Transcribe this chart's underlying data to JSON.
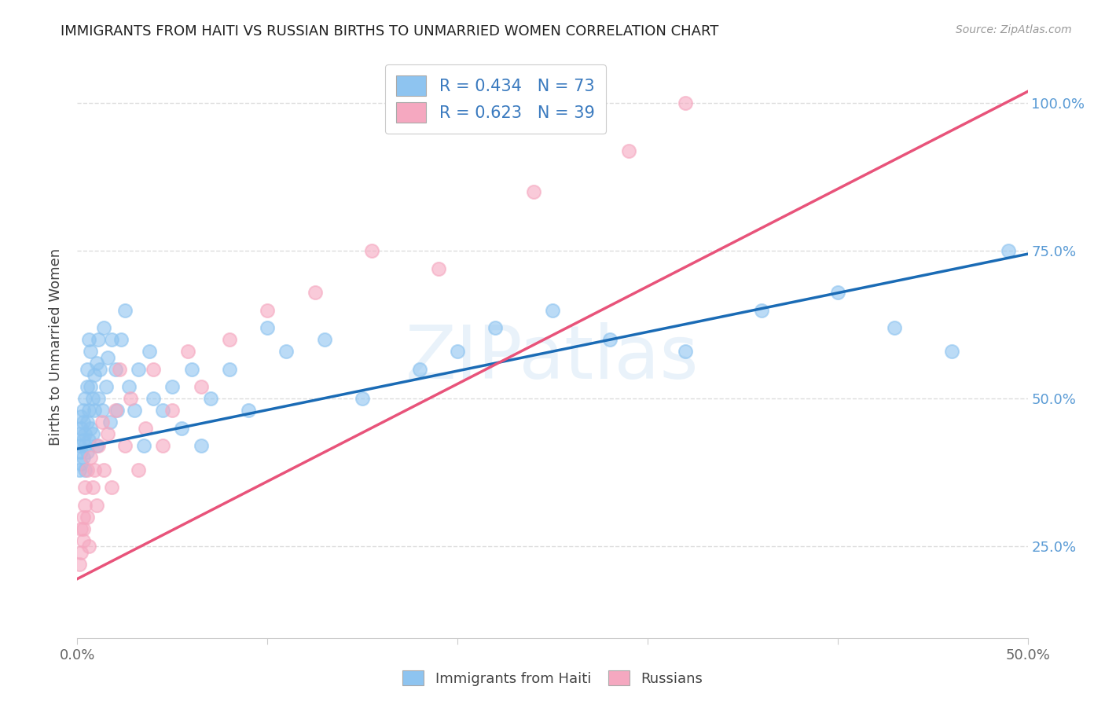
{
  "title": "IMMIGRANTS FROM HAITI VS RUSSIAN BIRTHS TO UNMARRIED WOMEN CORRELATION CHART",
  "source": "Source: ZipAtlas.com",
  "ylabel": "Births to Unmarried Women",
  "legend_haiti": "Immigrants from Haiti",
  "legend_russians": "Russians",
  "r_haiti": "R = 0.434",
  "n_haiti": "N = 73",
  "r_russians": "R = 0.623",
  "n_russians": "N = 39",
  "haiti_color": "#8ec4f0",
  "russian_color": "#f5a8c0",
  "haiti_line_color": "#1a6bb5",
  "russian_line_color": "#e8537a",
  "watermark": "ZIPatlas",
  "background_color": "#ffffff",
  "grid_color": "#dddddd",
  "haiti_x": [
    0.001,
    0.001,
    0.001,
    0.002,
    0.002,
    0.002,
    0.002,
    0.003,
    0.003,
    0.003,
    0.003,
    0.004,
    0.004,
    0.004,
    0.004,
    0.005,
    0.005,
    0.005,
    0.005,
    0.006,
    0.006,
    0.006,
    0.007,
    0.007,
    0.007,
    0.008,
    0.008,
    0.009,
    0.009,
    0.01,
    0.01,
    0.011,
    0.011,
    0.012,
    0.013,
    0.014,
    0.015,
    0.016,
    0.017,
    0.018,
    0.02,
    0.021,
    0.023,
    0.025,
    0.027,
    0.03,
    0.032,
    0.035,
    0.038,
    0.04,
    0.045,
    0.05,
    0.055,
    0.06,
    0.065,
    0.07,
    0.08,
    0.09,
    0.1,
    0.11,
    0.13,
    0.15,
    0.18,
    0.2,
    0.22,
    0.25,
    0.28,
    0.32,
    0.36,
    0.4,
    0.43,
    0.46,
    0.49
  ],
  "haiti_y": [
    0.42,
    0.38,
    0.44,
    0.41,
    0.45,
    0.39,
    0.47,
    0.43,
    0.48,
    0.4,
    0.46,
    0.44,
    0.5,
    0.42,
    0.38,
    0.52,
    0.46,
    0.41,
    0.55,
    0.48,
    0.43,
    0.6,
    0.52,
    0.45,
    0.58,
    0.5,
    0.44,
    0.54,
    0.48,
    0.56,
    0.42,
    0.6,
    0.5,
    0.55,
    0.48,
    0.62,
    0.52,
    0.57,
    0.46,
    0.6,
    0.55,
    0.48,
    0.6,
    0.65,
    0.52,
    0.48,
    0.55,
    0.42,
    0.58,
    0.5,
    0.48,
    0.52,
    0.45,
    0.55,
    0.42,
    0.5,
    0.55,
    0.48,
    0.62,
    0.58,
    0.6,
    0.5,
    0.55,
    0.58,
    0.62,
    0.65,
    0.6,
    0.58,
    0.65,
    0.68,
    0.62,
    0.58,
    0.75
  ],
  "russian_x": [
    0.001,
    0.002,
    0.002,
    0.003,
    0.003,
    0.003,
    0.004,
    0.004,
    0.005,
    0.005,
    0.006,
    0.007,
    0.008,
    0.009,
    0.01,
    0.011,
    0.013,
    0.014,
    0.016,
    0.018,
    0.02,
    0.022,
    0.025,
    0.028,
    0.032,
    0.036,
    0.04,
    0.045,
    0.05,
    0.058,
    0.065,
    0.08,
    0.1,
    0.125,
    0.155,
    0.19,
    0.24,
    0.29,
    0.32
  ],
  "russian_y": [
    0.22,
    0.28,
    0.24,
    0.3,
    0.26,
    0.28,
    0.32,
    0.35,
    0.3,
    0.38,
    0.25,
    0.4,
    0.35,
    0.38,
    0.32,
    0.42,
    0.46,
    0.38,
    0.44,
    0.35,
    0.48,
    0.55,
    0.42,
    0.5,
    0.38,
    0.45,
    0.55,
    0.42,
    0.48,
    0.58,
    0.52,
    0.6,
    0.65,
    0.68,
    0.75,
    0.72,
    0.85,
    0.92,
    1.0
  ],
  "haiti_line_x": [
    0.0,
    0.5
  ],
  "haiti_line_y": [
    0.415,
    0.745
  ],
  "russian_line_x": [
    0.0,
    0.5
  ],
  "russian_line_y": [
    0.195,
    1.02
  ],
  "xmin": 0.0,
  "xmax": 0.5,
  "ymin": 0.095,
  "ymax": 1.08,
  "yticks": [
    0.25,
    0.5,
    0.75,
    1.0
  ],
  "ytick_labels_right": [
    "25.0%",
    "50.0%",
    "75.0%",
    "100.0%"
  ],
  "xticks": [
    0.0,
    0.1,
    0.2,
    0.3,
    0.4,
    0.5
  ],
  "xtick_labels": [
    "0.0%",
    "",
    "",
    "",
    "",
    "50.0%"
  ],
  "title_fontsize": 13,
  "source_fontsize": 10,
  "tick_fontsize": 13,
  "ylabel_fontsize": 13,
  "legend_fontsize": 15
}
